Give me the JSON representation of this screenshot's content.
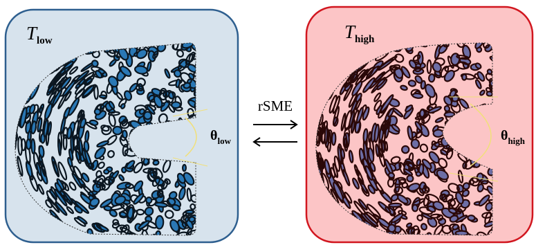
{
  "panels": [
    {
      "label": {
        "main": "T",
        "sub": "low"
      },
      "angle": {
        "main": "θ",
        "sub": "low"
      }
    },
    {
      "label": {
        "main": "T",
        "sub": "high"
      },
      "angle": {
        "main": "θ",
        "sub": "high"
      }
    }
  ],
  "arrow_label": "rSME"
}
